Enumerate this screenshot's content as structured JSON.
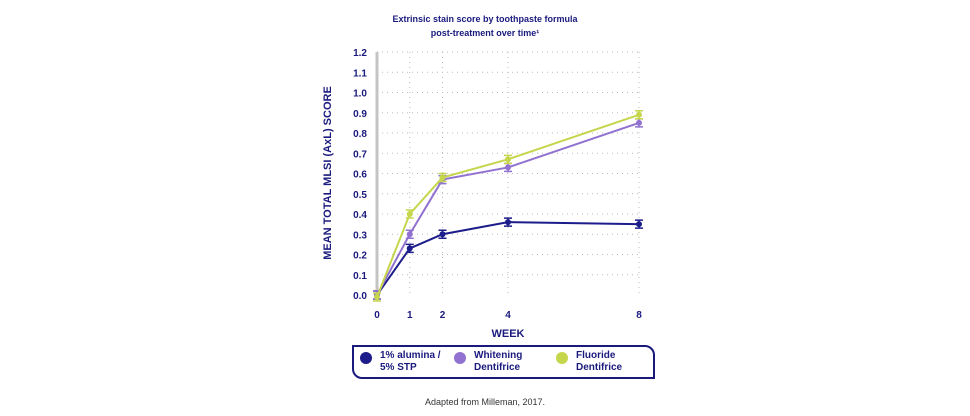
{
  "chart_data": {
    "type": "line",
    "title": "Extrinsic stain score by toothpaste formula",
    "subtitle": "post-treatment over time¹",
    "xlabel": "WEEK",
    "ylabel": "MEAN TOTAL MLSI (AxL) SCORE",
    "x": [
      0,
      1,
      2,
      4,
      8
    ],
    "xticks": [
      "0",
      "1",
      "2",
      "4",
      "8"
    ],
    "yticks": [
      "0.0",
      "0.1",
      "0.2",
      "0.3",
      "0.4",
      "0.5",
      "0.6",
      "0.7",
      "0.8",
      "0.9",
      "1.0",
      "1.1",
      "1.2"
    ],
    "ylim": [
      0,
      1.2
    ],
    "grid": true,
    "legend_position": "bottom",
    "series": [
      {
        "name": "1% alumina / 5% STP",
        "name_lines": [
          "1% alumina /",
          "5% STP"
        ],
        "color": "#1c1c8a",
        "values": [
          0,
          0.23,
          0.3,
          0.36,
          0.35
        ]
      },
      {
        "name": "Whitening Dentifrice",
        "name_lines": [
          "Whitening",
          "Dentifrice"
        ],
        "color": "#9272d0",
        "values": [
          0,
          0.3,
          0.57,
          0.63,
          0.85
        ]
      },
      {
        "name": "Fluoride Dentifrice",
        "name_lines": [
          "Fluoride",
          "Dentifrice"
        ],
        "color": "#c6d64c",
        "values": [
          -0.01,
          0.4,
          0.58,
          0.67,
          0.89
        ]
      }
    ]
  },
  "source": "Adapted from Milleman, 2017."
}
